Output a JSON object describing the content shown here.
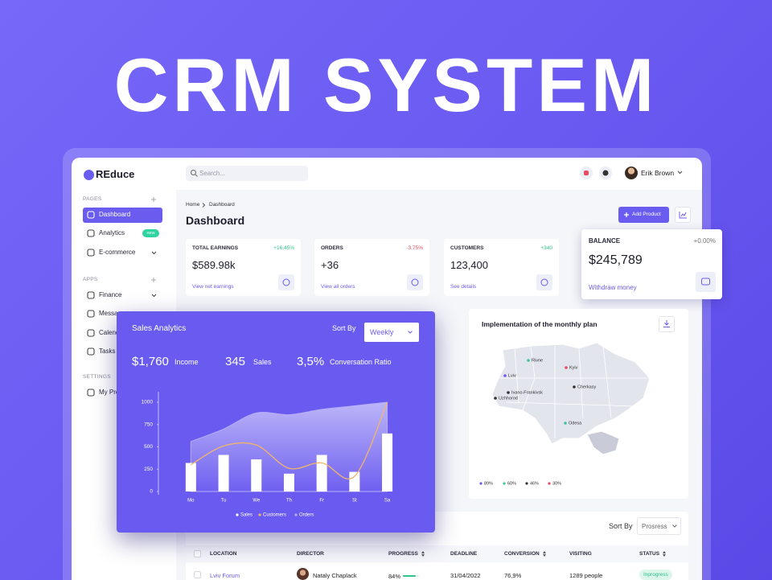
{
  "hero": {
    "title": "CRM SYSTEM"
  },
  "app": {
    "logo": "REduce",
    "search_placeholder": "Search...",
    "user": "Erik Brown"
  },
  "sidebar": {
    "sections": [
      {
        "title": "PAGES",
        "items": [
          {
            "label": "Dashboard"
          },
          {
            "label": "Analytics",
            "badge": "new"
          },
          {
            "label": "E-commerce"
          }
        ]
      },
      {
        "title": "APPS",
        "items": [
          {
            "label": "Finance"
          },
          {
            "label": "Messages"
          },
          {
            "label": "Calendar"
          },
          {
            "label": "Tasks"
          }
        ]
      },
      {
        "title": "SETTINGS",
        "items": [
          {
            "label": "My Profile"
          }
        ]
      }
    ]
  },
  "header": {
    "breadcrumb": [
      "Home",
      "Dashboard"
    ],
    "title": "Dashboard",
    "button": "Add Product"
  },
  "cards": [
    {
      "title": "TOTAL EARNINGS",
      "change": "+16,45%",
      "color": "#2ec48a",
      "value": "$589.98k",
      "link": "View net earnings"
    },
    {
      "title": "ORDERS",
      "change": "-3,75%",
      "color": "#e84a5f",
      "value": "+36",
      "link": "View all orders"
    },
    {
      "title": "CUSTOMERS",
      "change": "+340",
      "color": "#2ec48a",
      "value": "123,400",
      "link": "See details"
    }
  ],
  "balance": {
    "title": "BALANCE",
    "change": "+0.00%",
    "value": "$245,789",
    "link": "Withdraw money"
  },
  "chart_data": {
    "type": "bar",
    "title": "Sales Analytics",
    "sort_label": "Sort By",
    "sort_value": "Weekly",
    "stats": [
      {
        "value": "$1,760",
        "label": "Income"
      },
      {
        "value": "345",
        "label": "Sales"
      },
      {
        "value": "3,5%",
        "label": "Conversation Ratio"
      }
    ],
    "categories": [
      "Mo",
      "Tu",
      "We",
      "Th",
      "Fr",
      "St",
      "Sa"
    ],
    "series": [
      {
        "name": "Sales",
        "color": "#ffffff",
        "values": [
          320,
          410,
          360,
          200,
          410,
          220,
          650
        ]
      },
      {
        "name": "Customers",
        "type": "line",
        "color": "#f2b56b",
        "values": [
          300,
          510,
          520,
          260,
          320,
          170,
          1000
        ]
      },
      {
        "name": "Orders",
        "type": "area",
        "color": "#b7aefa",
        "values": [
          560,
          700,
          880,
          860,
          920,
          960,
          1000
        ]
      }
    ],
    "ylim": [
      0,
      1000
    ],
    "yticks": [
      0,
      250,
      500,
      750,
      1000
    ]
  },
  "map": {
    "title": "Implementation of the monthly plan",
    "cities": [
      {
        "name": "Rivne",
        "color": "#3cc6a0"
      },
      {
        "name": "Kyiv",
        "color": "#e84a5f"
      },
      {
        "name": "Lviv",
        "color": "#6b5cf0"
      },
      {
        "name": "Ivano-Frankivsk",
        "color": "#333333"
      },
      {
        "name": "Cherkasy",
        "color": "#333333"
      },
      {
        "name": "Uzhhorod",
        "color": "#333333"
      },
      {
        "name": "Odesa",
        "color": "#3cc6a0"
      }
    ],
    "legend": [
      {
        "label": "89%",
        "color": "#6b5cf0"
      },
      {
        "label": "60%",
        "color": "#3cc6a0"
      },
      {
        "label": "46%",
        "color": "#333333"
      },
      {
        "label": "30%",
        "color": "#e84a5f"
      }
    ]
  },
  "table": {
    "sort_label": "Sort By",
    "sort_value": "Prosress",
    "columns": [
      "LOCATION",
      "DIRECTOR",
      "PROGRESS",
      "DEADLINE",
      "CONVERSION",
      "VISITING",
      "STATUS"
    ],
    "rows": [
      [
        "Lviv Forum",
        "Nataly Chaplack",
        "84%",
        "31/04/2022",
        "76,9%",
        "1289 people",
        "Inprogress"
      ]
    ]
  }
}
